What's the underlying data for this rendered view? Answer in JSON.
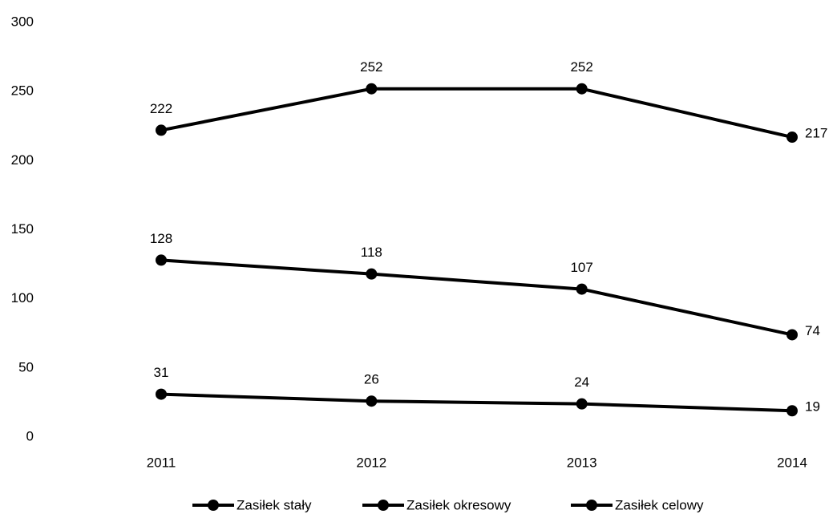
{
  "chart_data": {
    "type": "line",
    "categories": [
      "2011",
      "2012",
      "2013",
      "2014"
    ],
    "series": [
      {
        "name": "Zasiłek stały",
        "color": "#000000",
        "values": [
          31,
          26,
          24,
          19
        ]
      },
      {
        "name": "Zasiłek okresowy",
        "color": "#000000",
        "values": [
          128,
          118,
          107,
          74
        ]
      },
      {
        "name": "Zasiłek celowy",
        "color": "#000000",
        "values": [
          222,
          252,
          252,
          217
        ]
      }
    ],
    "ylim": [
      0,
      300
    ],
    "yticks": [
      0,
      50,
      100,
      150,
      200,
      250,
      300
    ],
    "grid": false,
    "legend": "bottom"
  }
}
